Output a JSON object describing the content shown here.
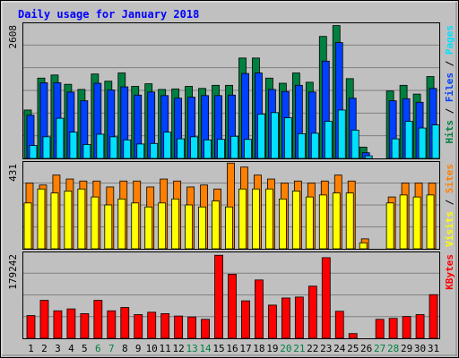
{
  "title": "Daily usage for January 2018",
  "colors": {
    "background": "#C0C0C0",
    "title": "#0000FF",
    "hits": "#008040",
    "files": "#0040FF",
    "pages": "#00E0FF",
    "visits": "#FFFF00",
    "sites": "#FF8000",
    "kbytes": "#FF0000",
    "weekday_label": "#000000",
    "weekend_label": "#008040"
  },
  "chart_data": [
    {
      "type": "bar",
      "panel": "hits-files-pages",
      "legend": [
        {
          "label": "Pages",
          "color": "#00E0FF"
        },
        {
          "label": "Files",
          "color": "#0040FF"
        },
        {
          "label": "Hits",
          "color": "#008040"
        }
      ],
      "ylabel_max": "2608",
      "ylim": [
        0,
        2608
      ],
      "categories": [
        "1",
        "2",
        "3",
        "4",
        "5",
        "6",
        "7",
        "8",
        "9",
        "10",
        "11",
        "12",
        "13",
        "14",
        "15",
        "16",
        "17",
        "18",
        "19",
        "20",
        "21",
        "22",
        "23",
        "24",
        "25",
        "26",
        "27",
        "28",
        "29",
        "30",
        "31"
      ],
      "weekend_days": [
        "6",
        "7",
        "13",
        "14",
        "20",
        "21",
        "27",
        "28"
      ],
      "series": [
        {
          "name": "Hits",
          "values": [
            940,
            1560,
            1620,
            1440,
            1340,
            1640,
            1500,
            1660,
            1400,
            1450,
            1340,
            1350,
            1400,
            1360,
            1420,
            1420,
            1950,
            1950,
            1560,
            1460,
            1660,
            1480,
            2370,
            2580,
            1550,
            220,
            null,
            1310,
            1420,
            1250,
            1590
          ]
        },
        {
          "name": "Files",
          "values": [
            840,
            1470,
            1470,
            1290,
            1120,
            1460,
            1330,
            1390,
            1230,
            1290,
            1220,
            1170,
            1190,
            1220,
            1220,
            1230,
            1650,
            1660,
            1340,
            1300,
            1420,
            1290,
            1890,
            2250,
            1170,
            110,
            null,
            1120,
            1160,
            1090,
            1360
          ]
        },
        {
          "name": "Pages",
          "values": [
            250,
            420,
            780,
            510,
            270,
            470,
            420,
            360,
            280,
            290,
            510,
            380,
            420,
            360,
            370,
            430,
            370,
            860,
            890,
            790,
            480,
            490,
            720,
            940,
            550,
            50,
            null,
            380,
            720,
            590,
            650
          ]
        }
      ]
    },
    {
      "type": "bar",
      "panel": "visits-sites",
      "legend": [
        {
          "label": "Sites",
          "color": "#FF8000"
        },
        {
          "label": "Visits",
          "color": "#FFFF00"
        }
      ],
      "ylabel_max": "431",
      "ylim": [
        0,
        431
      ],
      "categories": [
        "1",
        "2",
        "3",
        "4",
        "5",
        "6",
        "7",
        "8",
        "9",
        "10",
        "11",
        "12",
        "13",
        "14",
        "15",
        "16",
        "17",
        "18",
        "19",
        "20",
        "21",
        "22",
        "23",
        "24",
        "25",
        "26",
        "27",
        "28",
        "29",
        "30",
        "31"
      ],
      "series": [
        {
          "name": "Sites",
          "values": [
            330,
            320,
            370,
            350,
            340,
            340,
            310,
            340,
            340,
            310,
            350,
            340,
            310,
            320,
            300,
            430,
            410,
            370,
            350,
            330,
            340,
            330,
            340,
            370,
            340,
            50,
            null,
            260,
            330,
            330,
            330
          ]
        },
        {
          "name": "Visits",
          "values": [
            230,
            300,
            280,
            290,
            300,
            260,
            220,
            250,
            230,
            210,
            230,
            250,
            220,
            210,
            240,
            210,
            300,
            300,
            300,
            250,
            290,
            260,
            270,
            280,
            280,
            30,
            null,
            230,
            270,
            260,
            270
          ]
        }
      ]
    },
    {
      "type": "bar",
      "panel": "kbytes",
      "legend": [
        {
          "label": "KBytes",
          "color": "#FF0000"
        }
      ],
      "ylabel_max": "179242",
      "ylim": [
        0,
        179242
      ],
      "categories": [
        "1",
        "2",
        "3",
        "4",
        "5",
        "6",
        "7",
        "8",
        "9",
        "10",
        "11",
        "12",
        "13",
        "14",
        "15",
        "16",
        "17",
        "18",
        "19",
        "20",
        "21",
        "22",
        "23",
        "24",
        "25",
        "26",
        "27",
        "28",
        "29",
        "30",
        "31"
      ],
      "series": [
        {
          "name": "KBytes",
          "values": [
            48000,
            80000,
            58000,
            62000,
            52000,
            80000,
            58000,
            65000,
            50000,
            55000,
            52000,
            47000,
            45000,
            40000,
            175000,
            135000,
            79000,
            123000,
            70000,
            85000,
            87000,
            110000,
            170000,
            57000,
            10000,
            null,
            40000,
            42000,
            46000,
            50000,
            92000
          ]
        }
      ]
    }
  ]
}
